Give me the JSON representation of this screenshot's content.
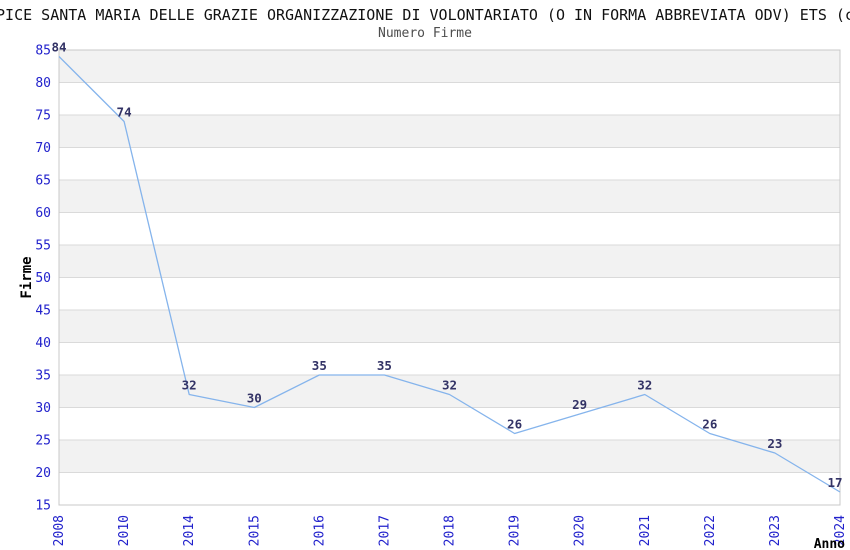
{
  "page": {
    "title_clipped": "PICE SANTA MARIA DELLE GRAZIE ORGANIZZAZIONE DI VOLONTARIATO (O IN FORMA ABBREVIATA ODV) ETS (c",
    "subtitle": "Numero Firme"
  },
  "chart_data": {
    "type": "line",
    "title": "Numero Firme",
    "xlabel": "Anno",
    "ylabel": "Firme",
    "categories": [
      "2008",
      "2010",
      "2014",
      "2015",
      "2016",
      "2017",
      "2018",
      "2019",
      "2020",
      "2021",
      "2022",
      "2023",
      "2024"
    ],
    "values": [
      84,
      74,
      32,
      30,
      35,
      35,
      32,
      26,
      29,
      32,
      26,
      23,
      17
    ],
    "ylim": [
      15,
      85
    ],
    "ytick_step": 5,
    "grid": true,
    "legend_position": "none",
    "band_colors": [
      "#ffffff",
      "#f2f2f2"
    ],
    "gridline_color": "#dadada",
    "border_color": "#c8c8c8",
    "line_color": "#85b4ec",
    "tick_label_color": "#2222cc",
    "value_label_color": "#333366",
    "axis_title_color": "#000000"
  }
}
